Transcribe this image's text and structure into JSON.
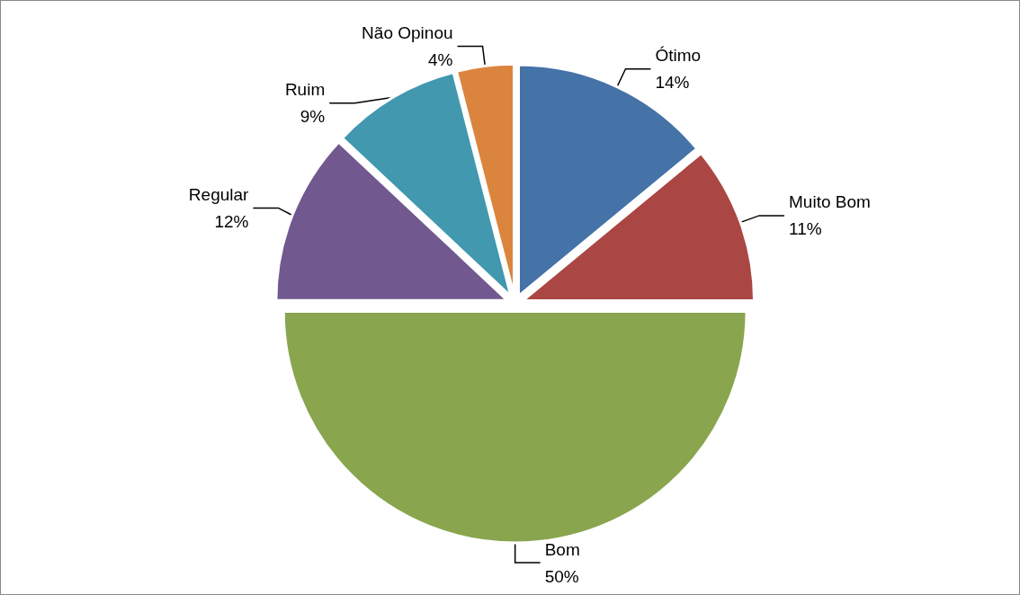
{
  "chart_data": {
    "type": "pie",
    "categories": [
      "Ótimo",
      "Muito Bom",
      "Bom",
      "Regular",
      "Ruim",
      "Não Opinou"
    ],
    "values": [
      14,
      11,
      50,
      12,
      9,
      4
    ],
    "value_labels": [
      "14%",
      "11%",
      "50%",
      "12%",
      "9%",
      "4%"
    ],
    "colors": [
      "#4572a7",
      "#aa4643",
      "#89a54e",
      "#71588f",
      "#4198af",
      "#db843d"
    ]
  }
}
